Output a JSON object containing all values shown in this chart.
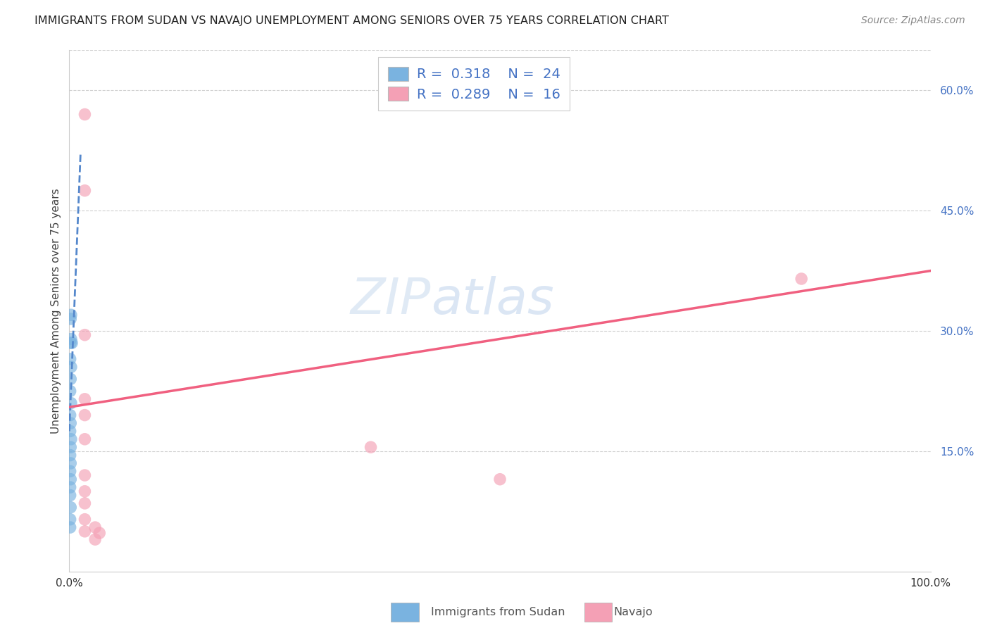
{
  "title": "IMMIGRANTS FROM SUDAN VS NAVAJO UNEMPLOYMENT AMONG SENIORS OVER 75 YEARS CORRELATION CHART",
  "source": "Source: ZipAtlas.com",
  "ylabel": "Unemployment Among Seniors over 75 years",
  "xlim": [
    0,
    1.0
  ],
  "ylim": [
    0,
    0.65
  ],
  "xticks": [
    0.0,
    0.1,
    0.2,
    0.3,
    0.4,
    0.5,
    0.6,
    0.7,
    0.8,
    0.9,
    1.0
  ],
  "xticklabels": [
    "0.0%",
    "",
    "",
    "",
    "",
    "",
    "",
    "",
    "",
    "",
    "100.0%"
  ],
  "yticks_right": [
    0.0,
    0.15,
    0.3,
    0.45,
    0.6
  ],
  "yticklabels_right": [
    "",
    "15.0%",
    "30.0%",
    "45.0%",
    "60.0%"
  ],
  "color_blue": "#7ab3e0",
  "color_pink": "#f4a0b5",
  "color_blue_dark": "#4472c4",
  "color_trendline_blue": "#5588cc",
  "color_trendline_pink": "#f06080",
  "watermark_zip": "ZIP",
  "watermark_atlas": "atlas",
  "sudan_x": [
    0.0015,
    0.002,
    0.0015,
    0.002,
    0.003,
    0.001,
    0.002,
    0.0015,
    0.001,
    0.002,
    0.001,
    0.0015,
    0.001,
    0.002,
    0.0015,
    0.001,
    0.0015,
    0.001,
    0.0015,
    0.001,
    0.001,
    0.0015,
    0.001,
    0.001
  ],
  "sudan_y": [
    0.315,
    0.32,
    0.285,
    0.29,
    0.285,
    0.265,
    0.255,
    0.24,
    0.225,
    0.21,
    0.195,
    0.185,
    0.175,
    0.165,
    0.155,
    0.145,
    0.135,
    0.125,
    0.115,
    0.105,
    0.095,
    0.08,
    0.065,
    0.055
  ],
  "navajo_x": [
    0.018,
    0.018,
    0.018,
    0.018,
    0.018,
    0.018,
    0.018,
    0.018,
    0.018,
    0.018,
    0.018,
    0.35,
    0.5,
    0.85,
    0.03,
    0.035,
    0.03
  ],
  "navajo_y": [
    0.57,
    0.475,
    0.295,
    0.215,
    0.195,
    0.165,
    0.12,
    0.1,
    0.085,
    0.065,
    0.05,
    0.155,
    0.115,
    0.365,
    0.055,
    0.048,
    0.04
  ],
  "sudan_trend_x": [
    0.0,
    0.013
  ],
  "sudan_trend_y": [
    0.175,
    0.52
  ],
  "navajo_trend_x": [
    0.0,
    1.0
  ],
  "navajo_trend_y": [
    0.205,
    0.375
  ]
}
